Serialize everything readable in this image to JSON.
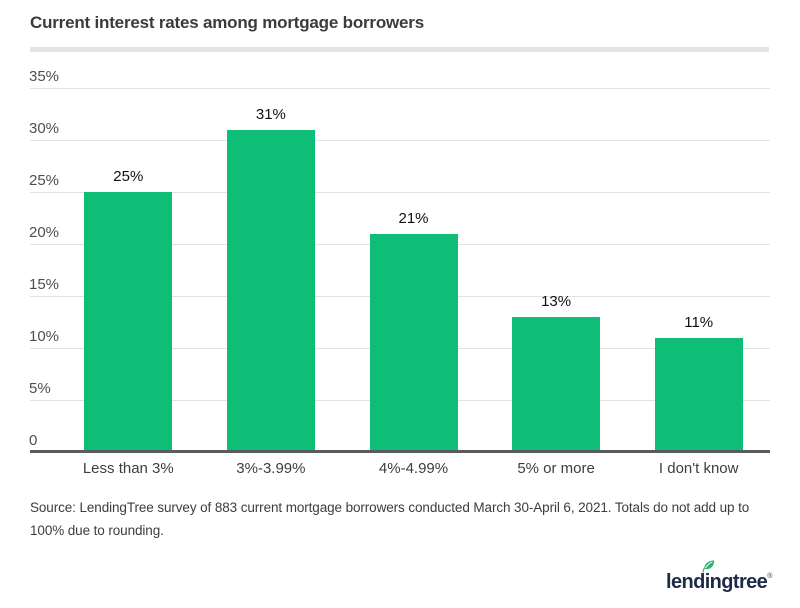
{
  "header": {
    "title": "Current interest rates among mortgage borrowers"
  },
  "chart_data": {
    "type": "bar",
    "title": "Current interest rates among mortgage borrowers",
    "categories": [
      "Less than 3%",
      "3%-3.99%",
      "4%-4.99%",
      "5% or more",
      "I don't know"
    ],
    "values": [
      25,
      31,
      21,
      13,
      11
    ],
    "value_labels": [
      "25%",
      "31%",
      "21%",
      "13%",
      "11%"
    ],
    "xlabel": "",
    "ylabel": "",
    "ylim": [
      0,
      35
    ],
    "y_ticks": [
      {
        "v": 35,
        "label": "35%"
      },
      {
        "v": 30,
        "label": "30%"
      },
      {
        "v": 25,
        "label": "25%"
      },
      {
        "v": 20,
        "label": "20%"
      },
      {
        "v": 15,
        "label": "15%"
      },
      {
        "v": 10,
        "label": "10%"
      },
      {
        "v": 5,
        "label": "5%"
      },
      {
        "v": 0,
        "label": "0"
      }
    ],
    "grid": true,
    "legend": false,
    "bar_color": "#0ebd76"
  },
  "footer": {
    "source_text": "Source: LendingTree survey of 883 current mortgage borrowers conducted March 30-April 6, 2021. Totals do not add up to 100% due to rounding.",
    "logo_text": "lendingtree",
    "logo_registered": "®"
  },
  "colors": {
    "bar_green": "#0ebd76",
    "leaf_green": "#2bb673",
    "logo_navy": "#1d2b48",
    "gridline": "#e2e2e2",
    "axis_line": "#5a5b5e",
    "title_text": "#3b3b3b",
    "tick_text": "#4f4f4f",
    "value_text": "#101010",
    "source_text": "#3d3d3d",
    "divider": "#e4e4e4"
  }
}
